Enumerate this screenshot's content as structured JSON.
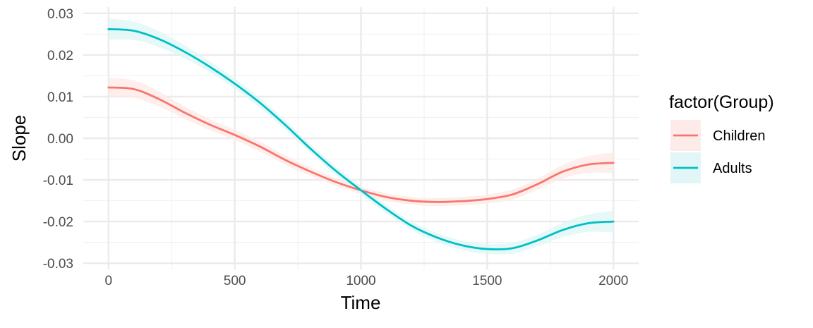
{
  "chart_data": {
    "type": "line",
    "xlabel": "Time",
    "ylabel": "Slope",
    "xlim": [
      -100,
      2100
    ],
    "ylim": [
      -0.0315,
      0.0315
    ],
    "x_ticks": [
      0,
      500,
      1000,
      1500,
      2000
    ],
    "x_tick_labels": [
      "0",
      "500",
      "1000",
      "1500",
      "2000"
    ],
    "y_ticks": [
      -0.03,
      -0.02,
      -0.01,
      0.0,
      0.01,
      0.02,
      0.03
    ],
    "y_tick_labels": [
      "-0.03",
      "-0.02",
      "-0.01",
      "0.00",
      "0.01",
      "0.02",
      "0.03"
    ],
    "grid": true,
    "legend": {
      "title": "factor(Group)",
      "position": "right"
    },
    "x": [
      0,
      100,
      200,
      300,
      400,
      500,
      600,
      700,
      800,
      900,
      1000,
      1100,
      1200,
      1300,
      1400,
      1500,
      1600,
      1700,
      1800,
      1900,
      2000
    ],
    "series": [
      {
        "name": "Children",
        "color": "#F8766D",
        "fill": "#FDE8E6",
        "values": [
          0.0122,
          0.0118,
          0.0094,
          0.0062,
          0.0033,
          0.0008,
          -0.002,
          -0.0052,
          -0.008,
          -0.0105,
          -0.0125,
          -0.0141,
          -0.015,
          -0.0153,
          -0.0151,
          -0.0146,
          -0.0135,
          -0.011,
          -0.008,
          -0.0063,
          -0.0059
        ],
        "band": [
          0.0023,
          0.0021,
          0.0018,
          0.0015,
          0.0013,
          0.0012,
          0.0012,
          0.0011,
          0.001,
          0.0009,
          0.0009,
          0.0009,
          0.0009,
          0.001,
          0.001,
          0.0011,
          0.0012,
          0.0013,
          0.0016,
          0.002,
          0.0025
        ]
      },
      {
        "name": "Adults",
        "color": "#00BFC4",
        "fill": "#DDF5F6",
        "values": [
          0.0262,
          0.0258,
          0.0238,
          0.0208,
          0.0172,
          0.0131,
          0.0085,
          0.0032,
          -0.0025,
          -0.0078,
          -0.0125,
          -0.017,
          -0.021,
          -0.0238,
          -0.0257,
          -0.0266,
          -0.0264,
          -0.0245,
          -0.022,
          -0.0204,
          -0.02
        ],
        "band": [
          0.0025,
          0.0022,
          0.0019,
          0.0016,
          0.0013,
          0.0012,
          0.0012,
          0.0011,
          0.001,
          0.001,
          0.001,
          0.001,
          0.001,
          0.0011,
          0.0011,
          0.0012,
          0.0013,
          0.0014,
          0.0017,
          0.0021,
          0.0026
        ]
      }
    ]
  }
}
